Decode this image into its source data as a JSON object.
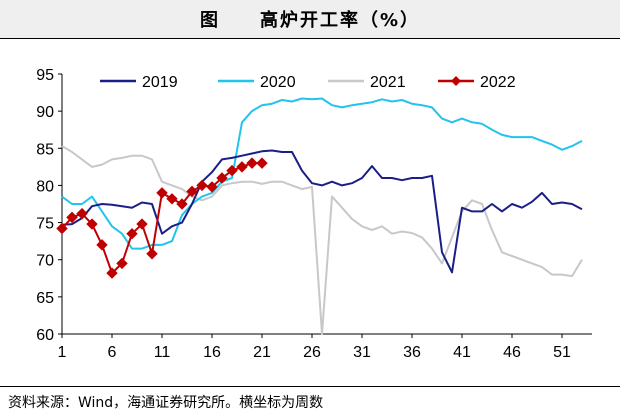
{
  "title": "图　　高炉开工率（%）",
  "source": "资料来源：Wind，海通证券研究所。横坐标为周数",
  "chart_data": {
    "type": "line",
    "xlim": [
      1,
      54
    ],
    "ylim": [
      60,
      95
    ],
    "x_ticks": [
      "1",
      "6",
      "11",
      "16",
      "21",
      "26",
      "31",
      "36",
      "41",
      "46",
      "51"
    ],
    "y_ticks": [
      "60",
      "65",
      "70",
      "75",
      "80",
      "85",
      "90",
      "95"
    ],
    "legend_position": "top",
    "grid": false,
    "series": [
      {
        "name": "2019",
        "color": "#1a1f86",
        "marker": "none",
        "x": [
          1,
          2,
          3,
          4,
          5,
          6,
          7,
          8,
          9,
          10,
          11,
          12,
          13,
          14,
          15,
          16,
          17,
          18,
          19,
          20,
          21,
          22,
          23,
          24,
          25,
          26,
          27,
          28,
          29,
          30,
          31,
          32,
          33,
          34,
          35,
          36,
          37,
          38,
          39,
          40,
          41,
          42,
          43,
          44,
          45,
          46,
          47,
          48,
          49,
          50,
          51,
          52,
          53
        ],
        "y": [
          74.7,
          74.8,
          75.6,
          77.2,
          77.5,
          77.4,
          77.2,
          77.0,
          77.7,
          77.5,
          73.5,
          74.5,
          75.0,
          77.5,
          80.5,
          81.8,
          83.5,
          83.7,
          84.0,
          84.3,
          84.6,
          84.7,
          84.5,
          84.5,
          82.0,
          80.3,
          80.0,
          80.5,
          80.0,
          80.3,
          81.0,
          82.6,
          81.0,
          81.0,
          80.7,
          81.0,
          81.0,
          81.3,
          71.0,
          68.3,
          77.0,
          76.5,
          76.5,
          77.5,
          76.5,
          77.5,
          77.0,
          77.8,
          79.0,
          77.5,
          77.7,
          77.5,
          76.8
        ]
      },
      {
        "name": "2020",
        "color": "#22c3ee",
        "marker": "none",
        "x": [
          1,
          2,
          3,
          4,
          5,
          6,
          7,
          8,
          9,
          10,
          11,
          12,
          13,
          14,
          15,
          16,
          17,
          18,
          19,
          20,
          21,
          22,
          23,
          24,
          25,
          26,
          27,
          28,
          29,
          30,
          31,
          32,
          33,
          34,
          35,
          36,
          37,
          38,
          39,
          40,
          41,
          42,
          43,
          44,
          45,
          46,
          47,
          48,
          49,
          50,
          51,
          52,
          53
        ],
        "y": [
          78.5,
          77.5,
          77.5,
          78.5,
          76.5,
          74.5,
          73.5,
          71.5,
          71.5,
          72.0,
          72.0,
          72.5,
          76.0,
          77.5,
          78.5,
          79.0,
          80.5,
          81.0,
          88.5,
          90.0,
          90.8,
          91.0,
          91.5,
          91.3,
          91.7,
          91.6,
          91.7,
          90.8,
          90.5,
          90.8,
          91.0,
          91.2,
          91.6,
          91.3,
          91.5,
          91.0,
          90.8,
          90.5,
          89.0,
          88.5,
          89.0,
          88.5,
          88.3,
          87.5,
          86.8,
          86.5,
          86.5,
          86.5,
          86.0,
          85.5,
          84.8,
          85.3,
          86.0
        ]
      },
      {
        "name": "2021",
        "color": "#c8c8c8",
        "marker": "none",
        "x": [
          1,
          2,
          3,
          4,
          5,
          6,
          7,
          8,
          9,
          10,
          11,
          12,
          13,
          14,
          15,
          16,
          17,
          18,
          19,
          20,
          21,
          22,
          23,
          24,
          25,
          26,
          27,
          28,
          29,
          30,
          31,
          32,
          33,
          34,
          35,
          36,
          37,
          38,
          39,
          40,
          41,
          42,
          43,
          44,
          45,
          46,
          47,
          48,
          49,
          50,
          51,
          52,
          53
        ],
        "y": [
          85.3,
          84.5,
          83.5,
          82.5,
          82.8,
          83.5,
          83.7,
          84.0,
          84.0,
          83.5,
          80.5,
          80.0,
          79.5,
          78.5,
          78.0,
          78.5,
          80.0,
          80.3,
          80.5,
          80.5,
          80.2,
          80.5,
          80.5,
          80.0,
          79.5,
          79.8,
          60.0,
          78.5,
          77.0,
          75.5,
          74.5,
          74.0,
          74.5,
          73.5,
          73.8,
          73.6,
          73.0,
          71.5,
          69.5,
          73.0,
          76.5,
          78.0,
          77.5,
          74.0,
          71.0,
          70.5,
          70.0,
          69.5,
          69.0,
          68.0,
          68.0,
          67.8,
          70.0
        ]
      },
      {
        "name": "2022",
        "color": "#c00000",
        "marker": "diamond",
        "x": [
          1,
          2,
          3,
          4,
          5,
          6,
          7,
          8,
          9,
          10,
          11,
          12,
          13,
          14,
          15,
          16,
          17,
          18,
          19,
          20,
          21
        ],
        "y": [
          74.2,
          75.7,
          76.2,
          74.8,
          72.0,
          68.2,
          69.5,
          73.5,
          74.8,
          70.8,
          79.0,
          78.2,
          77.5,
          79.2,
          80.0,
          79.8,
          81.0,
          82.0,
          82.5,
          83.0,
          83.0
        ]
      }
    ]
  }
}
